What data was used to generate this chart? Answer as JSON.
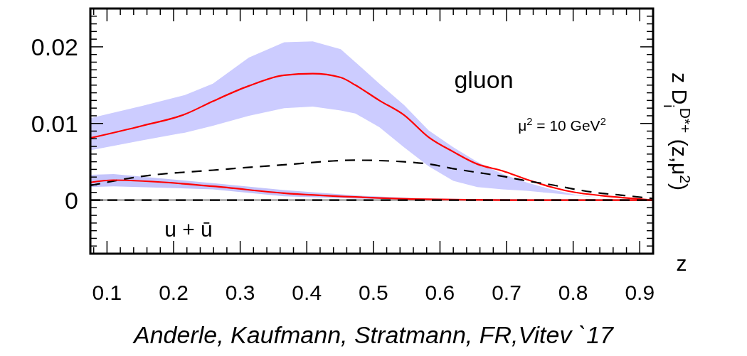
{
  "chart_data": {
    "type": "line",
    "xlabel": "z",
    "ylabel": "z D$_{i}$$^{D*+}$ (z,μ$^{2}$)",
    "xlim": [
      0.075,
      0.92
    ],
    "ylim": [
      -0.007,
      0.025
    ],
    "xticks": [
      0.1,
      0.2,
      0.3,
      0.4,
      0.5,
      0.6,
      0.7,
      0.8,
      0.9,
      {
        "value": 0.08,
        "label": null
      },
      {
        "value": 0.12,
        "label": null
      },
      {
        "value": 0.14,
        "label": null
      },
      {
        "value": 0.16,
        "label": null
      },
      {
        "value": 0.18,
        "label": null
      },
      {
        "value": 0.22,
        "label": null
      },
      {
        "value": 0.24,
        "label": null
      },
      {
        "value": 0.26,
        "label": null
      },
      {
        "value": 0.28,
        "label": null
      },
      {
        "value": 0.32,
        "label": null
      },
      {
        "value": 0.34,
        "label": null
      },
      {
        "value": 0.36,
        "label": null
      },
      {
        "value": 0.38,
        "label": null
      },
      {
        "value": 0.42,
        "label": null
      },
      {
        "value": 0.44,
        "label": null
      },
      {
        "value": 0.46,
        "label": null
      },
      {
        "value": 0.48,
        "label": null
      },
      {
        "value": 0.52,
        "label": null
      },
      {
        "value": 0.54,
        "label": null
      },
      {
        "value": 0.56,
        "label": null
      },
      {
        "value": 0.58,
        "label": null
      },
      {
        "value": 0.62,
        "label": null
      },
      {
        "value": 0.64,
        "label": null
      },
      {
        "value": 0.66,
        "label": null
      },
      {
        "value": 0.68,
        "label": null
      },
      {
        "value": 0.72,
        "label": null
      },
      {
        "value": 0.74,
        "label": null
      },
      {
        "value": 0.76,
        "label": null
      },
      {
        "value": 0.78,
        "label": null
      },
      {
        "value": 0.82,
        "label": null
      },
      {
        "value": 0.84,
        "label": null
      },
      {
        "value": 0.86,
        "label": null
      },
      {
        "value": 0.88,
        "label": null
      }
    ],
    "yticks": [
      0,
      0.01,
      0.02,
      {
        "value": -0.006,
        "label": null
      },
      {
        "value": -0.005,
        "label": null
      },
      {
        "value": -0.004,
        "label": null
      },
      {
        "value": -0.003,
        "label": null
      },
      {
        "value": -0.002,
        "label": null
      },
      {
        "value": -0.001,
        "label": null
      },
      {
        "value": 0.001,
        "label": null
      },
      {
        "value": 0.002,
        "label": null
      },
      {
        "value": 0.003,
        "label": null
      },
      {
        "value": 0.004,
        "label": null
      },
      {
        "value": 0.005,
        "label": null
      },
      {
        "value": 0.006,
        "label": null
      },
      {
        "value": 0.007,
        "label": null
      },
      {
        "value": 0.008,
        "label": null
      },
      {
        "value": 0.009,
        "label": null
      },
      {
        "value": 0.011,
        "label": null
      },
      {
        "value": 0.012,
        "label": null
      },
      {
        "value": 0.013,
        "label": null
      },
      {
        "value": 0.014,
        "label": null
      },
      {
        "value": 0.015,
        "label": null
      },
      {
        "value": 0.016,
        "label": null
      },
      {
        "value": 0.017,
        "label": null
      },
      {
        "value": 0.018,
        "label": null
      },
      {
        "value": 0.019,
        "label": null
      },
      {
        "value": 0.021,
        "label": null
      },
      {
        "value": 0.022,
        "label": null
      },
      {
        "value": 0.023,
        "label": null
      },
      {
        "value": 0.024,
        "label": null
      }
    ],
    "grid": false,
    "line_style": "solid",
    "ref_lines": [
      {
        "axis": "y",
        "value": 0,
        "color": "#888888",
        "line_style": "solid"
      }
    ],
    "series": [
      {
        "name": "gluon",
        "color": "#ff0000",
        "x": [
          0.075,
          0.153,
          0.217,
          0.259,
          0.313,
          0.366,
          0.409,
          0.451,
          0.473,
          0.509,
          0.546,
          0.583,
          0.62,
          0.656,
          0.694,
          0.73,
          0.767,
          0.803,
          0.841,
          0.877,
          0.919
        ],
        "values": [
          0.0081,
          0.0097,
          0.0112,
          0.0129,
          0.0149,
          0.0163,
          0.0165,
          0.016,
          0.015,
          0.013,
          0.0111,
          0.0082,
          0.0063,
          0.0047,
          0.0038,
          0.0027,
          0.0017,
          0.001,
          0.0006,
          0.0003,
          0
        ],
        "upper": [
          0.0107,
          0.0123,
          0.0137,
          0.0152,
          0.0186,
          0.0206,
          0.0207,
          0.0197,
          0.018,
          0.0152,
          0.0124,
          0.0091,
          0.0069,
          0.005,
          0.0034,
          0.0023,
          0.0014,
          0.0007,
          0.0003,
          0.0001,
          0
        ],
        "lower": [
          0.0065,
          0.0078,
          0.0088,
          0.0097,
          0.011,
          0.012,
          0.0122,
          0.0117,
          0.0113,
          0.0095,
          0.0069,
          0.0044,
          0.0025,
          0.0017,
          0.0014,
          0.0012,
          0.0009,
          0.0006,
          0.0003,
          0.0001,
          0
        ]
      },
      {
        "color": "#000000",
        "line_style": "dashed",
        "x": [
          0.075,
          0.153,
          0.259,
          0.366,
          0.473,
          0.546,
          0.583,
          0.62,
          0.656,
          0.694,
          0.73,
          0.767,
          0.803,
          0.841,
          0.877,
          0.919
        ],
        "values": [
          0.0019,
          0.0031,
          0.0039,
          0.0046,
          0.0052,
          0.005,
          0.0047,
          0.0041,
          0.0036,
          0.0031,
          0.0025,
          0.002,
          0.0014,
          0.0009,
          0.0006,
          0.0002
        ]
      },
      {
        "name": "u + ū",
        "color": "#ff0000",
        "x": [
          0.075,
          0.11,
          0.259,
          0.366,
          0.473,
          0.58,
          0.7,
          0.8,
          0.919
        ],
        "values": [
          0.0023,
          0.0026,
          0.0018,
          0.0009,
          0.0004,
          0.0001,
          0,
          0,
          0
        ],
        "upper": [
          0.0033,
          0.0034,
          0.0022,
          0.0013,
          0.0006,
          0.0002,
          0.0001,
          0,
          0
        ],
        "lower": [
          0.0017,
          0.0018,
          0.0014,
          0.0005,
          0.0002,
          0,
          0,
          0,
          0
        ]
      },
      {
        "color": "#000000",
        "line_style": "dashed",
        "x": [
          0.075,
          0.919
        ],
        "values": [
          0,
          0
        ]
      }
    ],
    "annotations": [
      "μ$^{2}$ = 10 GeV$^{2}$",
      "Anderle, Kaufmann, Stratmann, FR,Vitev `17"
    ]
  }
}
